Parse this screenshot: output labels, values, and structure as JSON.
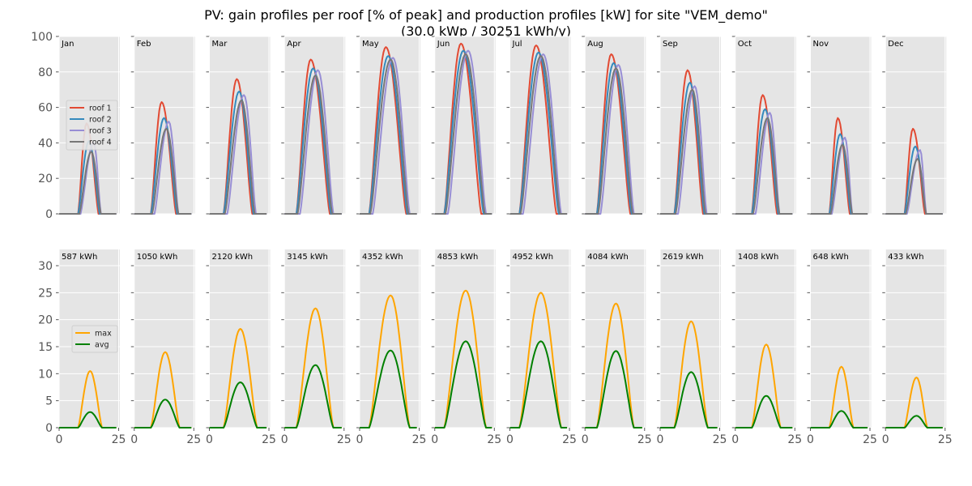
{
  "title": {
    "line1": "PV: gain profiles per roof [% of peak] and production profiles [kW] for site \"VEM_demo\"",
    "line2": "(30.0 kWp / 30251 kWh/y)"
  },
  "chart_data": [
    {
      "type": "line",
      "name": "gain profiles per roof",
      "ylabel": "% of peak",
      "xlim": [
        0,
        25.5
      ],
      "ylim": [
        0,
        100
      ],
      "yticks": [
        0,
        20,
        40,
        60,
        80,
        100
      ],
      "xticks": [
        0,
        25
      ],
      "grid": true,
      "legend": {
        "placement": "center-left of first panel",
        "entries": [
          "roof 1",
          "roof 2",
          "roof 3",
          "roof 4"
        ]
      },
      "colors": {
        "roof 1": "#E24A33",
        "roof 2": "#348ABD",
        "roof 3": "#988ED5",
        "roof 4": "#777777"
      },
      "panels": [
        "Jan",
        "Feb",
        "Mar",
        "Apr",
        "May",
        "Jun",
        "Jul",
        "Aug",
        "Sep",
        "Oct",
        "Nov",
        "Dec"
      ],
      "series_note": "per month: [start_hour, peak_hour, end_hour, peak_value]",
      "series": {
        "roof 1": [
          [
            8,
            11.5,
            16.5,
            51
          ],
          [
            7,
            11.5,
            17.5,
            63
          ],
          [
            6,
            11.5,
            18,
            76
          ],
          [
            5,
            11,
            19,
            87
          ],
          [
            4,
            11,
            19.5,
            94
          ],
          [
            4,
            11,
            19.5,
            96
          ],
          [
            4,
            11,
            19.5,
            95
          ],
          [
            5,
            11,
            19,
            90
          ],
          [
            6,
            11.5,
            18,
            81
          ],
          [
            7,
            11.5,
            17.5,
            67
          ],
          [
            8,
            11.5,
            16.5,
            54
          ],
          [
            8,
            11.5,
            16.5,
            48
          ]
        ],
        "roof 2": [
          [
            8,
            12.5,
            17,
            41
          ],
          [
            7,
            12.5,
            18,
            54
          ],
          [
            6,
            12.5,
            18.5,
            69
          ],
          [
            5,
            12,
            19.5,
            82
          ],
          [
            4,
            12,
            20,
            89
          ],
          [
            4,
            12,
            20.5,
            92
          ],
          [
            4,
            12,
            20.5,
            91
          ],
          [
            5,
            12,
            19.5,
            85
          ],
          [
            6,
            12.5,
            18.5,
            74
          ],
          [
            7,
            12.5,
            18,
            59
          ],
          [
            8,
            12.5,
            17,
            45
          ],
          [
            8,
            12.5,
            17,
            38
          ]
        ],
        "roof 3": [
          [
            9,
            14.5,
            17.5,
            40
          ],
          [
            8.5,
            14.5,
            18.5,
            52
          ],
          [
            7.5,
            14.5,
            19.5,
            67
          ],
          [
            6.5,
            14,
            20.5,
            81
          ],
          [
            5.5,
            14,
            21,
            88
          ],
          [
            5.5,
            14,
            21.5,
            92
          ],
          [
            5.5,
            14,
            21.5,
            90
          ],
          [
            6.5,
            14,
            20.5,
            84
          ],
          [
            7.5,
            14.5,
            19.5,
            72
          ],
          [
            8.5,
            14.5,
            18.5,
            57
          ],
          [
            9,
            14.5,
            17.5,
            43
          ],
          [
            9,
            14.5,
            17,
            36
          ]
        ],
        "roof 4": [
          [
            8.5,
            13.5,
            17.5,
            35
          ],
          [
            7.5,
            13.5,
            18.5,
            48
          ],
          [
            6.5,
            13.5,
            19,
            64
          ],
          [
            5.5,
            13,
            20,
            78
          ],
          [
            4.5,
            13,
            20.5,
            87
          ],
          [
            4.5,
            13,
            21,
            90
          ],
          [
            4.5,
            13,
            21,
            89
          ],
          [
            5.5,
            13,
            20,
            82
          ],
          [
            6.5,
            13.5,
            19,
            70
          ],
          [
            7.5,
            13.5,
            18.5,
            54
          ],
          [
            8.5,
            13.5,
            17.5,
            39
          ],
          [
            8.5,
            13.5,
            17,
            31
          ]
        ]
      }
    },
    {
      "type": "line",
      "name": "production profiles",
      "ylabel": "kW",
      "xlim": [
        0,
        25.5
      ],
      "ylim": [
        0,
        33
      ],
      "yticks": [
        0,
        5,
        10,
        15,
        20,
        25,
        30
      ],
      "xticks": [
        0,
        25
      ],
      "grid": true,
      "legend": {
        "placement": "center-left of first panel",
        "entries": [
          "max",
          "avg"
        ]
      },
      "colors": {
        "max": "#FFA500",
        "avg": "#008000"
      },
      "panel_labels": [
        "587 kWh",
        "1050 kWh",
        "2120 kWh",
        "3145 kWh",
        "4352 kWh",
        "4853 kWh",
        "4952 kWh",
        "4084 kWh",
        "2619 kWh",
        "1408 kWh",
        "648 kWh",
        "433 kWh"
      ],
      "series_note": "per month: [start_hour, peak_hour, end_hour, peak_value]",
      "series": {
        "max": [
          [
            8,
            13,
            18,
            10.5
          ],
          [
            7,
            13,
            19,
            14.0
          ],
          [
            6,
            13,
            20,
            18.3
          ],
          [
            5,
            13,
            20.5,
            22.1
          ],
          [
            4,
            13,
            21,
            24.5
          ],
          [
            4,
            13,
            21.5,
            25.4
          ],
          [
            4,
            13,
            21.5,
            25.0
          ],
          [
            5,
            13,
            20.5,
            23.0
          ],
          [
            6,
            13,
            20,
            19.7
          ],
          [
            7,
            13,
            19,
            15.4
          ],
          [
            8,
            13,
            18,
            11.3
          ],
          [
            8,
            13,
            17.5,
            9.3
          ]
        ],
        "avg": [
          [
            8,
            13,
            18,
            2.9
          ],
          [
            7,
            13,
            19,
            5.2
          ],
          [
            6,
            13,
            20,
            8.4
          ],
          [
            5,
            13,
            20.5,
            11.6
          ],
          [
            4,
            13,
            21,
            14.3
          ],
          [
            4,
            13,
            21.5,
            16.0
          ],
          [
            4,
            13,
            21.5,
            16.0
          ],
          [
            5,
            13,
            20.5,
            14.2
          ],
          [
            6,
            13,
            20,
            10.3
          ],
          [
            7,
            13,
            19,
            5.9
          ],
          [
            8,
            13,
            18,
            3.1
          ],
          [
            8,
            13,
            17.5,
            2.2
          ]
        ]
      }
    }
  ]
}
